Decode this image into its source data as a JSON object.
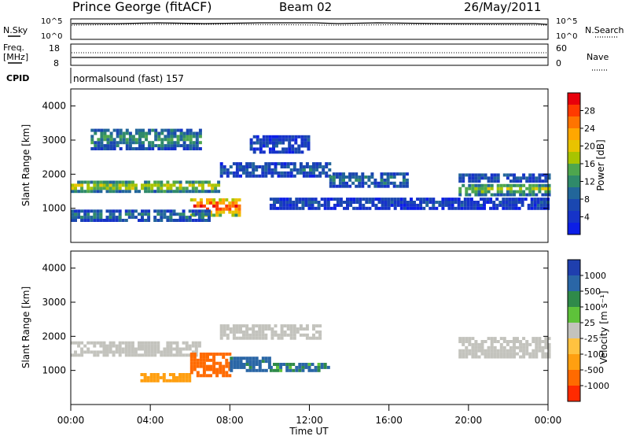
{
  "header": {
    "station": "Prince George (fitACF)",
    "beam": "Beam 02",
    "date": "26/May/2011"
  },
  "status_panels": {
    "noise": {
      "left_label": "N.Sky",
      "right_label": "N.Search",
      "left_ticks": [
        "10^5",
        "10^0"
      ],
      "right_ticks": [
        "10^5",
        "10^0"
      ]
    },
    "freq": {
      "left_label_1": "Freq.",
      "left_label_2": "[MHz]",
      "right_label": "Nave",
      "left_ticks": [
        "18",
        "8"
      ],
      "right_ticks": [
        "60",
        "0"
      ]
    },
    "cpid": {
      "label": "CPID",
      "text": "normalsound (fast) 157"
    }
  },
  "colorbars": {
    "power": {
      "label": "Power [dB]",
      "ticks": [
        "28",
        "24",
        "20",
        "16",
        "12",
        "8",
        "4"
      ],
      "colors": [
        "#e8000b",
        "#ff3a00",
        "#ff7400",
        "#ffa700",
        "#e8c300",
        "#a8c400",
        "#4ea64e",
        "#2f8a6a",
        "#22669a",
        "#1a47b0",
        "#1633c8",
        "#0c1ee6"
      ]
    },
    "velocity": {
      "label": "Velocity  [m s⁻¹]",
      "ticks": [
        "1000",
        "500",
        "100",
        "25",
        "-25",
        "-100",
        "-500",
        "-1000"
      ],
      "colors": [
        "#1f3fae",
        "#2a66a6",
        "#2f8a4a",
        "#5ec23a",
        "#c3c3bd",
        "#ffc240",
        "#ff9f10",
        "#ff6a00",
        "#ff2a00"
      ]
    }
  },
  "chart_data": [
    {
      "type": "heatmap",
      "name": "power",
      "ylabel": "Slant Range [km]",
      "ylim": [
        0,
        4500
      ],
      "yticks": [
        "4000",
        "3000",
        "2000",
        "1000"
      ],
      "xlim": [
        "00:00",
        "24:00"
      ],
      "colorscale_label": "Power [dB]",
      "zlim": [
        0,
        30
      ],
      "bands": [
        {
          "t0": 0.0,
          "t1": 7.5,
          "r0": 1450,
          "r1": 1750,
          "level": 18
        },
        {
          "t0": 7.5,
          "t1": 13.0,
          "r0": 1900,
          "r1": 2300,
          "level": 8
        },
        {
          "t0": 13.0,
          "t1": 17.0,
          "r0": 1600,
          "r1": 2000,
          "level": 10
        },
        {
          "t0": 19.5,
          "t1": 24.0,
          "r0": 1350,
          "r1": 1700,
          "level": 16
        },
        {
          "t0": 19.5,
          "t1": 24.0,
          "r0": 1750,
          "r1": 2000,
          "level": 8
        },
        {
          "t0": 6.0,
          "t1": 8.5,
          "r0": 750,
          "r1": 1250,
          "level": 28
        },
        {
          "t0": 0.0,
          "t1": 7.0,
          "r0": 600,
          "r1": 900,
          "level": 10
        },
        {
          "t0": 9.0,
          "t1": 12.0,
          "r0": 2600,
          "r1": 3100,
          "level": 6
        },
        {
          "t0": 1.0,
          "t1": 6.5,
          "r0": 2700,
          "r1": 3300,
          "level": 12
        },
        {
          "t0": 10.0,
          "t1": 24.0,
          "r0": 950,
          "r1": 1250,
          "level": 6
        }
      ]
    },
    {
      "type": "heatmap",
      "name": "velocity",
      "ylabel": "Slant Range [km]",
      "xlabel": "Time UT",
      "ylim": [
        0,
        4500
      ],
      "yticks": [
        "4000",
        "3000",
        "2000",
        "1000"
      ],
      "xticks": [
        "00:00",
        "04:00",
        "08:00",
        "12:00",
        "16:00",
        "20:00",
        "00:00"
      ],
      "xlim": [
        "00:00",
        "24:00"
      ],
      "colorscale_label": "Velocity [m s-1]",
      "zlim": [
        -1000,
        1000
      ],
      "bands": [
        {
          "t0": 0.0,
          "t1": 6.5,
          "r0": 1400,
          "r1": 1800,
          "level": 0
        },
        {
          "t0": 7.5,
          "t1": 12.5,
          "r0": 1900,
          "r1": 2350,
          "level": 0
        },
        {
          "t0": 19.5,
          "t1": 24.0,
          "r0": 1350,
          "r1": 1900,
          "level": 0
        },
        {
          "t0": 3.5,
          "t1": 6.0,
          "r0": 650,
          "r1": 900,
          "level": -400
        },
        {
          "t0": 6.0,
          "t1": 8.0,
          "r0": 800,
          "r1": 1500,
          "level": -700
        },
        {
          "t0": 8.0,
          "t1": 10.0,
          "r0": 950,
          "r1": 1400,
          "level": 150
        },
        {
          "t0": 10.0,
          "t1": 13.0,
          "r0": 950,
          "r1": 1150,
          "level": 100
        }
      ]
    }
  ]
}
